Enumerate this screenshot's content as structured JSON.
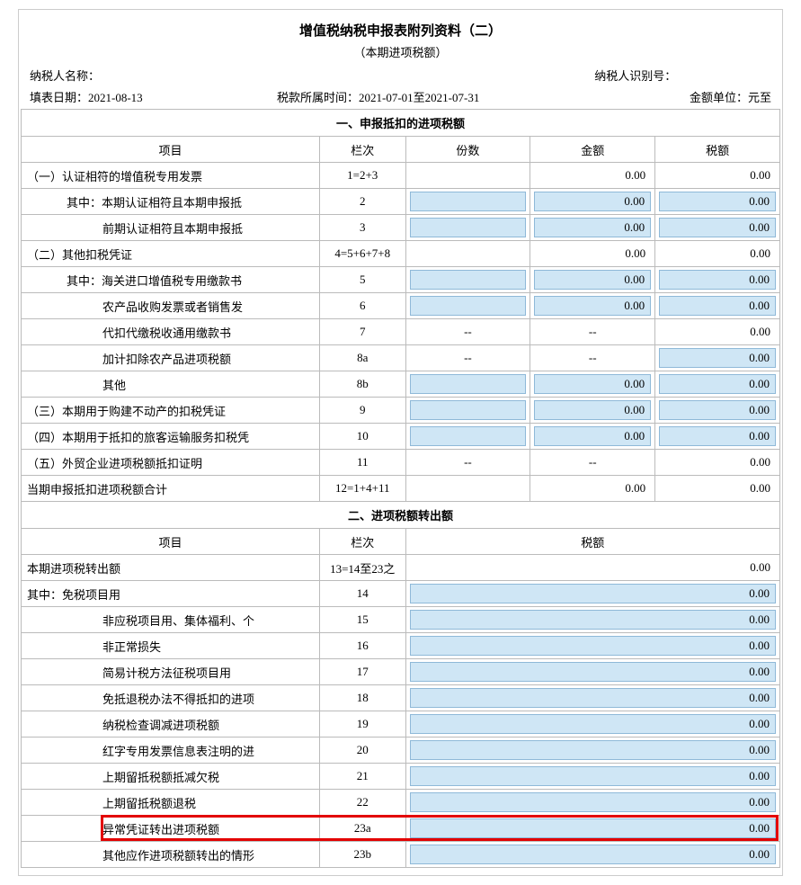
{
  "title": "增值税纳税申报表附列资料（二）",
  "subtitle": "（本期进项税额）",
  "header": {
    "taxpayer_name_label": "纳税人名称：",
    "taxpayer_id_label": "纳税人识别号：",
    "fill_date_label": "填表日期：",
    "fill_date": "2021-08-13",
    "period_label": "税款所属时间：",
    "period": "2021-07-01至2021-07-31",
    "unit_label": "金额单位：元至"
  },
  "section1": {
    "title": "一、申报抵扣的进项税额",
    "cols": {
      "item": "项目",
      "idx": "栏次",
      "fen": "份数",
      "jin": "金额",
      "shui": "税额"
    },
    "rows": [
      {
        "item": "（一）认证相符的增值税专用发票",
        "ind": 0,
        "idx": "1=2+3",
        "fen": "",
        "jin": "0.00",
        "shui": "0.00",
        "plain": true
      },
      {
        "item": "其中：本期认证相符且本期申报抵",
        "ind": 1,
        "idx": "2",
        "fen": "",
        "jin": "0.00",
        "shui": "0.00"
      },
      {
        "item": "前期认证相符且本期申报抵",
        "ind": 2,
        "idx": "3",
        "fen": "",
        "jin": "0.00",
        "shui": "0.00"
      },
      {
        "item": "（二）其他扣税凭证",
        "ind": 0,
        "idx": "4=5+6+7+8",
        "fen": "",
        "jin": "0.00",
        "shui": "0.00",
        "plain": true
      },
      {
        "item": "其中：海关进口增值税专用缴款书",
        "ind": 1,
        "idx": "5",
        "fen": "",
        "jin": "0.00",
        "shui": "0.00"
      },
      {
        "item": "农产品收购发票或者销售发",
        "ind": 2,
        "idx": "6",
        "fen": "",
        "jin": "0.00",
        "shui": "0.00"
      },
      {
        "item": "代扣代缴税收通用缴款书",
        "ind": 2,
        "idx": "7",
        "fen": "--",
        "jin": "--",
        "shui": "0.00",
        "dash_fen": true,
        "dash_jin": true,
        "plain_shui": true
      },
      {
        "item": "加计扣除农产品进项税额",
        "ind": 2,
        "idx": "8a",
        "fen": "--",
        "jin": "--",
        "shui": "0.00",
        "dash_fen": true,
        "dash_jin": true
      },
      {
        "item": "其他",
        "ind": 2,
        "idx": "8b",
        "fen": "",
        "jin": "0.00",
        "shui": "0.00"
      },
      {
        "item": "（三）本期用于购建不动产的扣税凭证",
        "ind": 0,
        "idx": "9",
        "fen": "",
        "jin": "0.00",
        "shui": "0.00"
      },
      {
        "item": "（四）本期用于抵扣的旅客运输服务扣税凭",
        "ind": 0,
        "idx": "10",
        "fen": "",
        "jin": "0.00",
        "shui": "0.00"
      },
      {
        "item": "（五）外贸企业进项税额抵扣证明",
        "ind": 0,
        "idx": "11",
        "fen": "--",
        "jin": "--",
        "shui": "0.00",
        "dash_fen": true,
        "dash_jin": true,
        "plain_shui": true
      },
      {
        "item": "当期申报抵扣进项税额合计",
        "ind": 0,
        "idx": "12=1+4+11",
        "fen": "",
        "jin": "0.00",
        "shui": "0.00",
        "plain": true
      }
    ]
  },
  "section2": {
    "title": "二、进项税额转出额",
    "cols": {
      "item": "项目",
      "idx": "栏次",
      "shui": "税额"
    },
    "rows": [
      {
        "item": "本期进项税转出额",
        "ind": 0,
        "idx": "13=14至23之",
        "shui": "0.00",
        "plain": true
      },
      {
        "item": "其中：免税项目用",
        "ind": 0,
        "idx": "14",
        "shui": "0.00"
      },
      {
        "item": "非应税项目用、集体福利、个",
        "ind": 2,
        "idx": "15",
        "shui": "0.00"
      },
      {
        "item": "非正常损失",
        "ind": 2,
        "idx": "16",
        "shui": "0.00"
      },
      {
        "item": "简易计税方法征税项目用",
        "ind": 2,
        "idx": "17",
        "shui": "0.00"
      },
      {
        "item": "免抵退税办法不得抵扣的进项",
        "ind": 2,
        "idx": "18",
        "shui": "0.00"
      },
      {
        "item": "纳税检查调减进项税额",
        "ind": 2,
        "idx": "19",
        "shui": "0.00"
      },
      {
        "item": "红字专用发票信息表注明的进",
        "ind": 2,
        "idx": "20",
        "shui": "0.00"
      },
      {
        "item": "上期留抵税额抵减欠税",
        "ind": 2,
        "idx": "21",
        "shui": "0.00"
      },
      {
        "item": "上期留抵税额退税",
        "ind": 2,
        "idx": "22",
        "shui": "0.00"
      },
      {
        "item": "异常凭证转出进项税额",
        "ind": 2,
        "idx": "23a",
        "shui": "0.00",
        "hl": true
      },
      {
        "item": "其他应作进项税额转出的情形",
        "ind": 2,
        "idx": "23b",
        "shui": "0.00"
      }
    ]
  },
  "highlight": {
    "color": "#e30000"
  }
}
